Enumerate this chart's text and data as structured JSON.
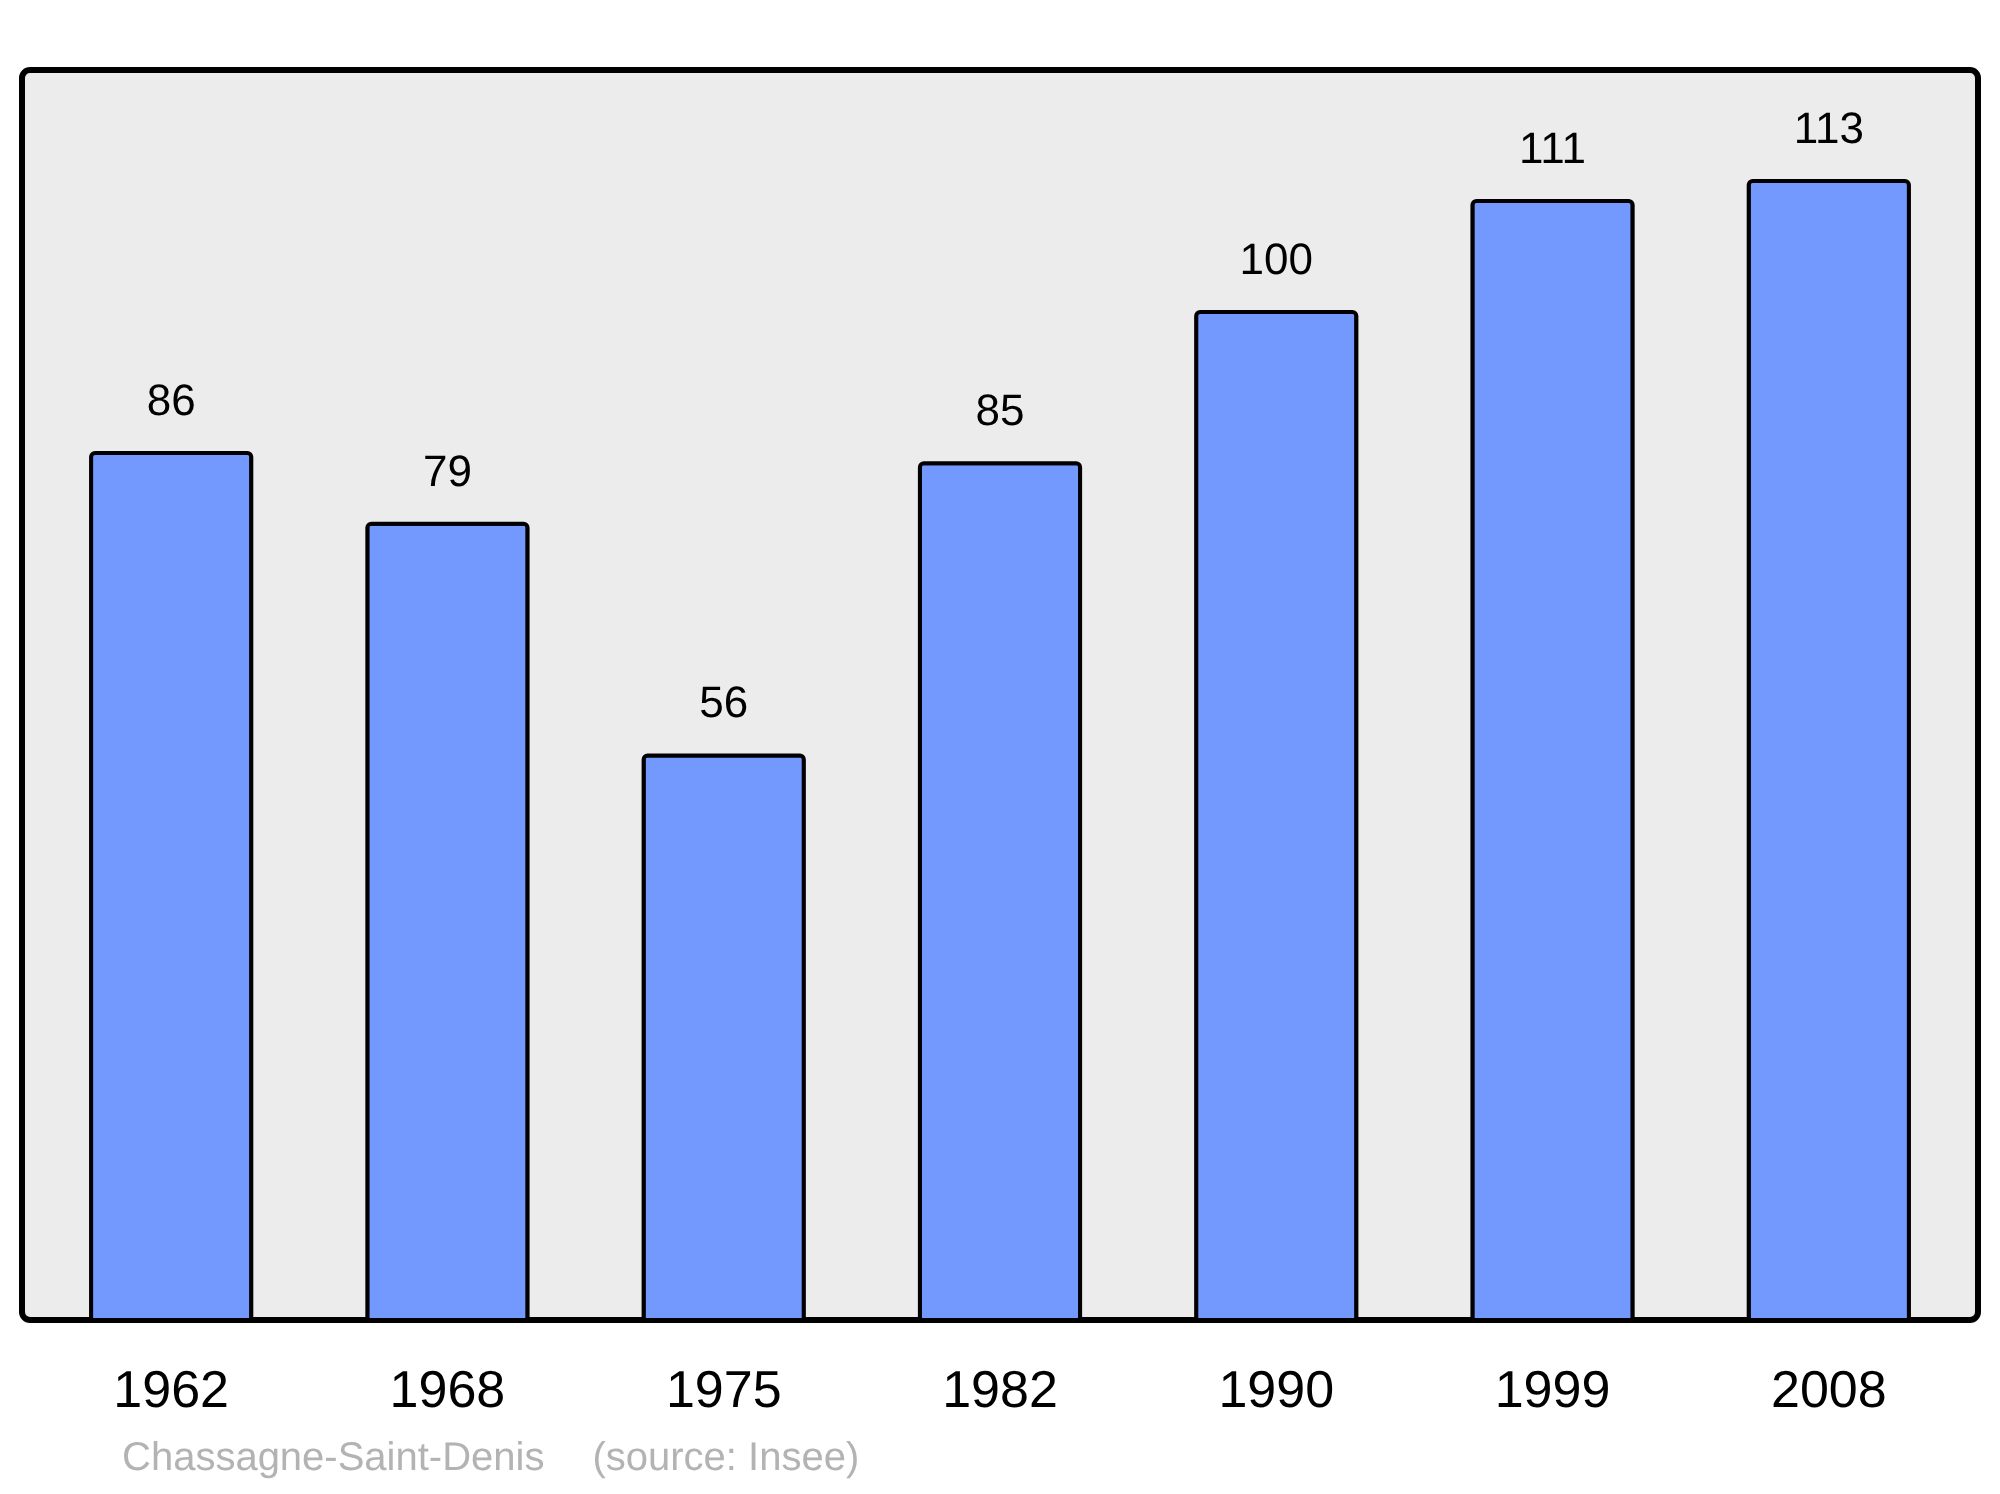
{
  "chart_data": {
    "type": "bar",
    "categories": [
      "1962",
      "1968",
      "1975",
      "1982",
      "1990",
      "1999",
      "2008"
    ],
    "values": [
      86,
      79,
      56,
      85,
      100,
      111,
      113
    ],
    "color": "#7399ff",
    "ylim": [
      0,
      124
    ],
    "data_labels": true,
    "tick_labels": "x",
    "grid": false,
    "annotations": [
      "Chassagne-Saint-Denis",
      "(source: Insee)"
    ]
  }
}
